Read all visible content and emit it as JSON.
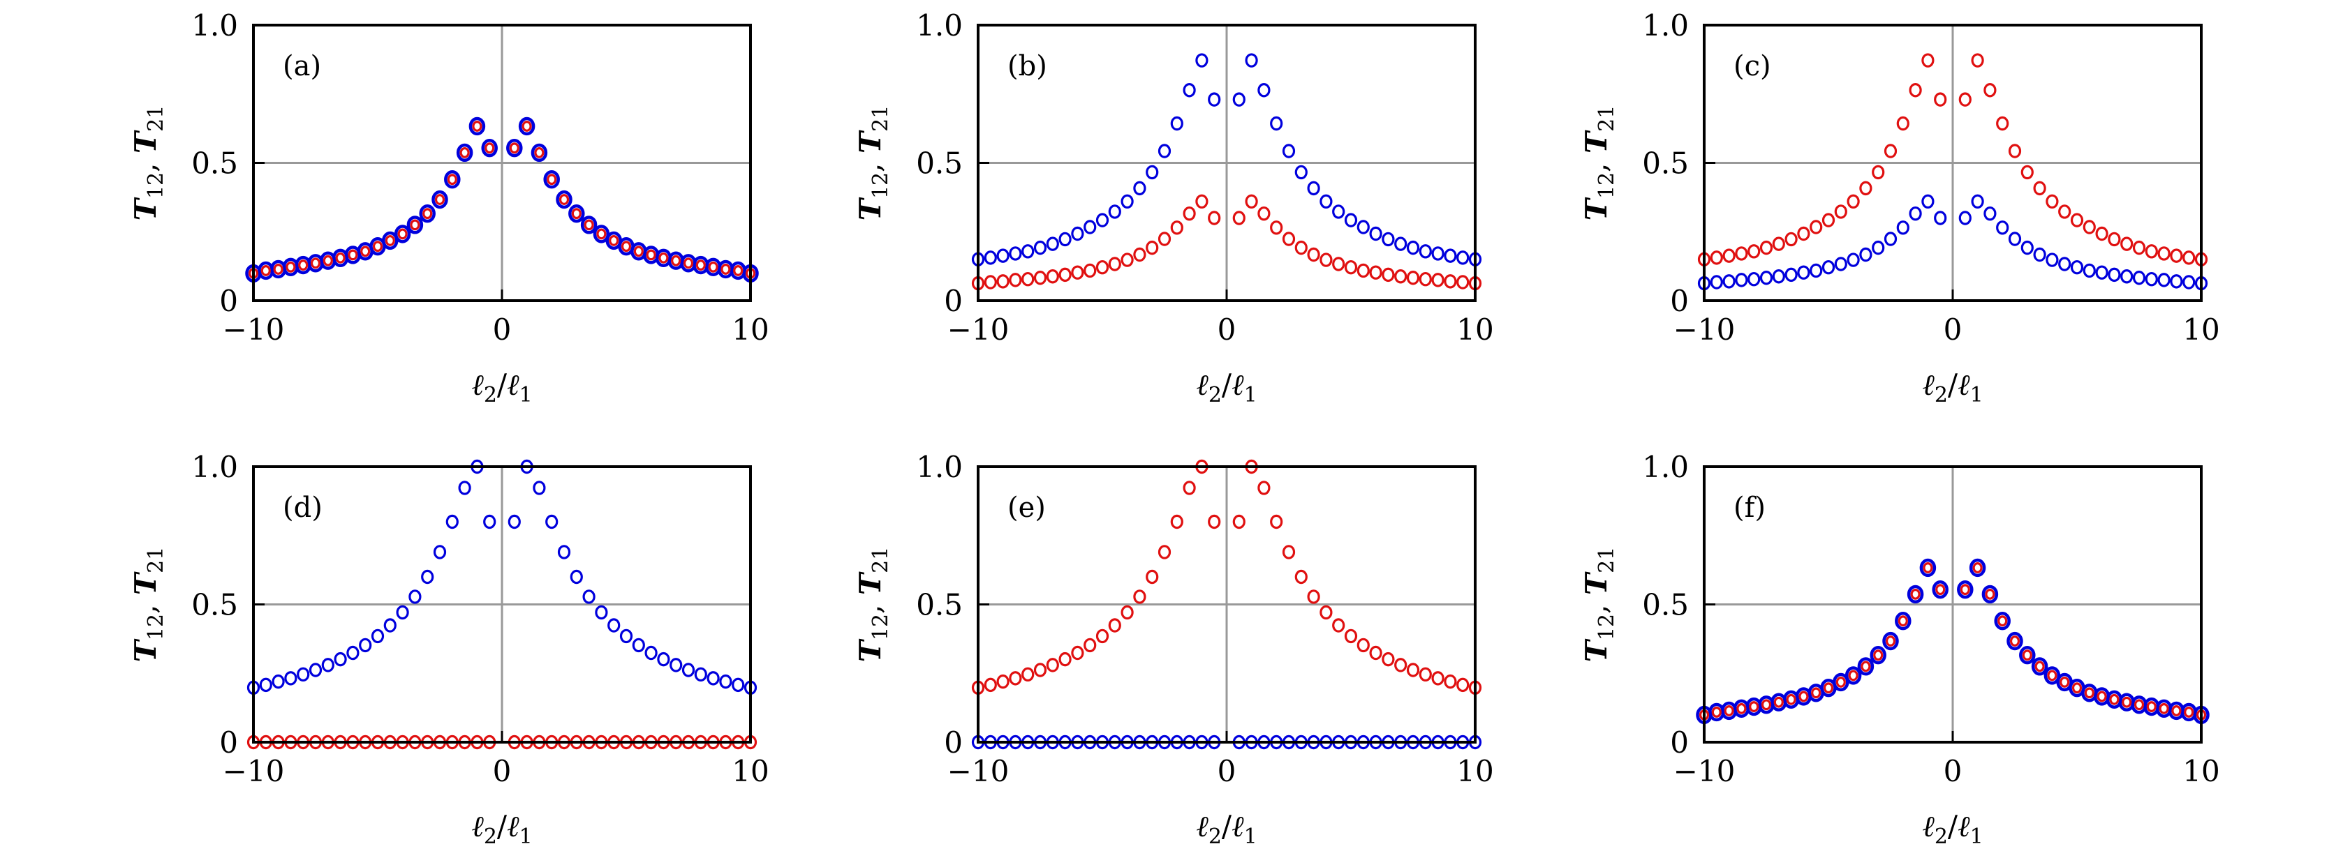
{
  "figure": {
    "colors": {
      "blue": "#0000dd",
      "red": "#e01010",
      "grid": "#999999",
      "axis": "#000000"
    }
  },
  "chart_data": [
    {
      "type": "scatter",
      "panel_label": "(a)",
      "xlabel": {
        "main1": "ℓ",
        "sub1": "2",
        "slash": "/",
        "main2": "ℓ",
        "sub2": "1"
      },
      "ylabel": {
        "main1": "T",
        "sub1": "12",
        "sep": ",  ",
        "main2": "T",
        "sub2": "21"
      },
      "xlim": [
        -10,
        10
      ],
      "ylim": [
        0,
        1
      ],
      "xticks": [
        {
          "value": -10,
          "label": "−10"
        },
        {
          "value": 0,
          "label": "0"
        },
        {
          "value": 10,
          "label": "10"
        }
      ],
      "yticks": [
        {
          "value": 0,
          "label": "0"
        },
        {
          "value": 0.5,
          "label": "0.5"
        },
        {
          "value": 1,
          "label": "1.0"
        }
      ],
      "grid": {
        "x": [
          0
        ],
        "y": [
          0.5
        ]
      },
      "x": [
        -10,
        -9.5,
        -9,
        -8.5,
        -8,
        -7.5,
        -7,
        -6.5,
        -6,
        -5.5,
        -5,
        -4.5,
        -4,
        -3.5,
        -3,
        -2.5,
        -2,
        -1.5,
        -1,
        -0.5,
        0.5,
        1,
        1.5,
        2,
        2.5,
        3,
        3.5,
        4,
        4.5,
        5,
        5.5,
        6,
        6.5,
        7,
        7.5,
        8,
        8.5,
        9,
        9.5,
        10
      ],
      "series": [
        {
          "name": "blue",
          "color": "#0000dd",
          "style": "large",
          "values": [
            0.099,
            0.109,
            0.114,
            0.122,
            0.129,
            0.136,
            0.145,
            0.155,
            0.166,
            0.179,
            0.197,
            0.218,
            0.242,
            0.275,
            0.316,
            0.367,
            0.44,
            0.537,
            0.633,
            0.554,
            0.554,
            0.633,
            0.537,
            0.44,
            0.367,
            0.316,
            0.275,
            0.242,
            0.218,
            0.197,
            0.179,
            0.166,
            0.155,
            0.145,
            0.136,
            0.129,
            0.122,
            0.114,
            0.109,
            0.099
          ]
        },
        {
          "name": "red",
          "color": "#e01010",
          "style": "small",
          "values": [
            0.099,
            0.109,
            0.114,
            0.122,
            0.129,
            0.136,
            0.145,
            0.155,
            0.166,
            0.179,
            0.197,
            0.218,
            0.242,
            0.275,
            0.316,
            0.367,
            0.44,
            0.537,
            0.633,
            0.554,
            0.554,
            0.633,
            0.537,
            0.44,
            0.367,
            0.316,
            0.275,
            0.242,
            0.218,
            0.197,
            0.179,
            0.166,
            0.155,
            0.145,
            0.136,
            0.129,
            0.122,
            0.114,
            0.109,
            0.099
          ]
        }
      ]
    },
    {
      "type": "scatter",
      "panel_label": "(b)",
      "xlabel": {
        "main1": "ℓ",
        "sub1": "2",
        "slash": "/",
        "main2": "ℓ",
        "sub2": "1"
      },
      "ylabel": {
        "main1": "T",
        "sub1": "12",
        "sep": ",  ",
        "main2": "T",
        "sub2": "21"
      },
      "xlim": [
        -10,
        10
      ],
      "ylim": [
        0,
        1
      ],
      "xticks": [
        {
          "value": -10,
          "label": "−10"
        },
        {
          "value": 0,
          "label": "0"
        },
        {
          "value": 10,
          "label": "10"
        }
      ],
      "yticks": [
        {
          "value": 0,
          "label": "0"
        },
        {
          "value": 0.5,
          "label": "0.5"
        },
        {
          "value": 1,
          "label": "1.0"
        }
      ],
      "grid": {
        "x": [
          0
        ],
        "y": [
          0.5
        ]
      },
      "x": [
        -10,
        -9.5,
        -9,
        -8.5,
        -8,
        -7.5,
        -7,
        -6.5,
        -6,
        -5.5,
        -5,
        -4.5,
        -4,
        -3.5,
        -3,
        -2.5,
        -2,
        -1.5,
        -1,
        -0.5,
        0.5,
        1,
        1.5,
        2,
        2.5,
        3,
        3.5,
        4,
        4.5,
        5,
        5.5,
        6,
        6.5,
        7,
        7.5,
        8,
        8.5,
        9,
        9.5,
        10
      ],
      "series": [
        {
          "name": "blue",
          "color": "#0000dd",
          "style": "normal",
          "values": [
            0.15,
            0.156,
            0.163,
            0.171,
            0.179,
            0.192,
            0.206,
            0.223,
            0.243,
            0.267,
            0.292,
            0.323,
            0.36,
            0.408,
            0.466,
            0.543,
            0.643,
            0.764,
            0.872,
            0.73,
            0.73,
            0.872,
            0.764,
            0.643,
            0.543,
            0.466,
            0.408,
            0.36,
            0.323,
            0.292,
            0.267,
            0.243,
            0.223,
            0.206,
            0.192,
            0.179,
            0.171,
            0.163,
            0.156,
            0.15
          ]
        },
        {
          "name": "red",
          "color": "#e01010",
          "style": "normal",
          "values": [
            0.063,
            0.067,
            0.07,
            0.075,
            0.078,
            0.083,
            0.088,
            0.094,
            0.102,
            0.109,
            0.121,
            0.133,
            0.148,
            0.167,
            0.192,
            0.224,
            0.265,
            0.316,
            0.36,
            0.3,
            0.3,
            0.36,
            0.316,
            0.265,
            0.224,
            0.192,
            0.167,
            0.148,
            0.133,
            0.121,
            0.109,
            0.102,
            0.094,
            0.088,
            0.083,
            0.078,
            0.075,
            0.07,
            0.067,
            0.063
          ]
        }
      ]
    },
    {
      "type": "scatter",
      "panel_label": "(c)",
      "xlabel": {
        "main1": "ℓ",
        "sub1": "2",
        "slash": "/",
        "main2": "ℓ",
        "sub2": "1"
      },
      "ylabel": {
        "main1": "T",
        "sub1": "12",
        "sep": ",  ",
        "main2": "T",
        "sub2": "21"
      },
      "xlim": [
        -10,
        10
      ],
      "ylim": [
        0,
        1
      ],
      "xticks": [
        {
          "value": -10,
          "label": "−10"
        },
        {
          "value": 0,
          "label": "0"
        },
        {
          "value": 10,
          "label": "10"
        }
      ],
      "yticks": [
        {
          "value": 0,
          "label": "0"
        },
        {
          "value": 0.5,
          "label": "0.5"
        },
        {
          "value": 1,
          "label": "1.0"
        }
      ],
      "grid": {
        "x": [
          0
        ],
        "y": [
          0.5
        ]
      },
      "x": [
        -10,
        -9.5,
        -9,
        -8.5,
        -8,
        -7.5,
        -7,
        -6.5,
        -6,
        -5.5,
        -5,
        -4.5,
        -4,
        -3.5,
        -3,
        -2.5,
        -2,
        -1.5,
        -1,
        -0.5,
        0.5,
        1,
        1.5,
        2,
        2.5,
        3,
        3.5,
        4,
        4.5,
        5,
        5.5,
        6,
        6.5,
        7,
        7.5,
        8,
        8.5,
        9,
        9.5,
        10
      ],
      "series": [
        {
          "name": "blue",
          "color": "#0000dd",
          "style": "normal",
          "values": [
            0.063,
            0.067,
            0.07,
            0.075,
            0.078,
            0.083,
            0.088,
            0.094,
            0.102,
            0.109,
            0.121,
            0.133,
            0.148,
            0.167,
            0.192,
            0.224,
            0.265,
            0.316,
            0.36,
            0.3,
            0.3,
            0.36,
            0.316,
            0.265,
            0.224,
            0.192,
            0.167,
            0.148,
            0.133,
            0.121,
            0.109,
            0.102,
            0.094,
            0.088,
            0.083,
            0.078,
            0.075,
            0.07,
            0.067,
            0.063
          ]
        },
        {
          "name": "red",
          "color": "#e01010",
          "style": "normal",
          "values": [
            0.15,
            0.156,
            0.163,
            0.171,
            0.179,
            0.192,
            0.206,
            0.223,
            0.243,
            0.267,
            0.292,
            0.323,
            0.36,
            0.408,
            0.466,
            0.543,
            0.643,
            0.764,
            0.872,
            0.73,
            0.73,
            0.872,
            0.764,
            0.643,
            0.543,
            0.466,
            0.408,
            0.36,
            0.323,
            0.292,
            0.267,
            0.243,
            0.223,
            0.206,
            0.192,
            0.179,
            0.171,
            0.163,
            0.156,
            0.15
          ]
        }
      ]
    },
    {
      "type": "scatter",
      "panel_label": "(d)",
      "xlabel": {
        "main1": "ℓ",
        "sub1": "2",
        "slash": "/",
        "main2": "ℓ",
        "sub2": "1"
      },
      "ylabel": {
        "main1": "T",
        "sub1": "12",
        "sep": ",  ",
        "main2": "T",
        "sub2": "21"
      },
      "xlim": [
        -10,
        10
      ],
      "ylim": [
        0,
        1
      ],
      "xticks": [
        {
          "value": -10,
          "label": "−10"
        },
        {
          "value": 0,
          "label": "0"
        },
        {
          "value": 10,
          "label": "10"
        }
      ],
      "yticks": [
        {
          "value": 0,
          "label": "0"
        },
        {
          "value": 0.5,
          "label": "0.5"
        },
        {
          "value": 1,
          "label": "1.0"
        }
      ],
      "grid": {
        "x": [
          0
        ],
        "y": [
          0.5
        ]
      },
      "x": [
        -10,
        -9.5,
        -9,
        -8.5,
        -8,
        -7.5,
        -7,
        -6.5,
        -6,
        -5.5,
        -5,
        -4.5,
        -4,
        -3.5,
        -3,
        -2.5,
        -2,
        -1.5,
        -1,
        -0.5,
        0.5,
        1,
        1.5,
        2,
        2.5,
        3,
        3.5,
        4,
        4.5,
        5,
        5.5,
        6,
        6.5,
        7,
        7.5,
        8,
        8.5,
        9,
        9.5,
        10
      ],
      "series": [
        {
          "name": "blue",
          "color": "#0000dd",
          "style": "normal",
          "values": [
            0.198,
            0.208,
            0.22,
            0.232,
            0.246,
            0.262,
            0.28,
            0.301,
            0.324,
            0.352,
            0.385,
            0.424,
            0.471,
            0.528,
            0.6,
            0.69,
            0.8,
            0.923,
            1.0,
            0.8,
            0.8,
            1.0,
            0.923,
            0.8,
            0.69,
            0.6,
            0.528,
            0.471,
            0.424,
            0.385,
            0.352,
            0.324,
            0.301,
            0.28,
            0.262,
            0.246,
            0.232,
            0.22,
            0.208,
            0.198
          ]
        },
        {
          "name": "red",
          "color": "#e01010",
          "style": "normal",
          "values": [
            0,
            0,
            0,
            0,
            0,
            0,
            0,
            0,
            0,
            0,
            0,
            0,
            0,
            0,
            0,
            0,
            0,
            0,
            0,
            0,
            0,
            0,
            0,
            0,
            0,
            0,
            0,
            0,
            0,
            0,
            0,
            0,
            0,
            0,
            0,
            0,
            0,
            0,
            0,
            0
          ]
        }
      ]
    },
    {
      "type": "scatter",
      "panel_label": "(e)",
      "xlabel": {
        "main1": "ℓ",
        "sub1": "2",
        "slash": "/",
        "main2": "ℓ",
        "sub2": "1"
      },
      "ylabel": {
        "main1": "T",
        "sub1": "12",
        "sep": ",  ",
        "main2": "T",
        "sub2": "21"
      },
      "xlim": [
        -10,
        10
      ],
      "ylim": [
        0,
        1
      ],
      "xticks": [
        {
          "value": -10,
          "label": "−10"
        },
        {
          "value": 0,
          "label": "0"
        },
        {
          "value": 10,
          "label": "10"
        }
      ],
      "yticks": [
        {
          "value": 0,
          "label": "0"
        },
        {
          "value": 0.5,
          "label": "0.5"
        },
        {
          "value": 1,
          "label": "1.0"
        }
      ],
      "grid": {
        "x": [
          0
        ],
        "y": [
          0.5
        ]
      },
      "x": [
        -10,
        -9.5,
        -9,
        -8.5,
        -8,
        -7.5,
        -7,
        -6.5,
        -6,
        -5.5,
        -5,
        -4.5,
        -4,
        -3.5,
        -3,
        -2.5,
        -2,
        -1.5,
        -1,
        -0.5,
        0.5,
        1,
        1.5,
        2,
        2.5,
        3,
        3.5,
        4,
        4.5,
        5,
        5.5,
        6,
        6.5,
        7,
        7.5,
        8,
        8.5,
        9,
        9.5,
        10
      ],
      "series": [
        {
          "name": "blue",
          "color": "#0000dd",
          "style": "normal",
          "values": [
            0,
            0,
            0,
            0,
            0,
            0,
            0,
            0,
            0,
            0,
            0,
            0,
            0,
            0,
            0,
            0,
            0,
            0,
            0,
            0,
            0,
            0,
            0,
            0,
            0,
            0,
            0,
            0,
            0,
            0,
            0,
            0,
            0,
            0,
            0,
            0,
            0,
            0,
            0,
            0
          ]
        },
        {
          "name": "red",
          "color": "#e01010",
          "style": "normal",
          "values": [
            0.198,
            0.208,
            0.22,
            0.232,
            0.246,
            0.262,
            0.28,
            0.301,
            0.324,
            0.352,
            0.385,
            0.424,
            0.471,
            0.528,
            0.6,
            0.69,
            0.8,
            0.923,
            1.0,
            0.8,
            0.8,
            1.0,
            0.923,
            0.8,
            0.69,
            0.6,
            0.528,
            0.471,
            0.424,
            0.385,
            0.352,
            0.324,
            0.301,
            0.28,
            0.262,
            0.246,
            0.232,
            0.22,
            0.208,
            0.198
          ]
        }
      ]
    },
    {
      "type": "scatter",
      "panel_label": "(f)",
      "xlabel": {
        "main1": "ℓ",
        "sub1": "2",
        "slash": "/",
        "main2": "ℓ",
        "sub2": "1"
      },
      "ylabel": {
        "main1": "T",
        "sub1": "12",
        "sep": ",  ",
        "main2": "T",
        "sub2": "21"
      },
      "xlim": [
        -10,
        10
      ],
      "ylim": [
        0,
        1
      ],
      "xticks": [
        {
          "value": -10,
          "label": "−10"
        },
        {
          "value": 0,
          "label": "0"
        },
        {
          "value": 10,
          "label": "10"
        }
      ],
      "yticks": [
        {
          "value": 0,
          "label": "0"
        },
        {
          "value": 0.5,
          "label": "0.5"
        },
        {
          "value": 1,
          "label": "1.0"
        }
      ],
      "grid": {
        "x": [
          0
        ],
        "y": [
          0.5
        ]
      },
      "x": [
        -10,
        -9.5,
        -9,
        -8.5,
        -8,
        -7.5,
        -7,
        -6.5,
        -6,
        -5.5,
        -5,
        -4.5,
        -4,
        -3.5,
        -3,
        -2.5,
        -2,
        -1.5,
        -1,
        -0.5,
        0.5,
        1,
        1.5,
        2,
        2.5,
        3,
        3.5,
        4,
        4.5,
        5,
        5.5,
        6,
        6.5,
        7,
        7.5,
        8,
        8.5,
        9,
        9.5,
        10
      ],
      "series": [
        {
          "name": "blue",
          "color": "#0000dd",
          "style": "large",
          "values": [
            0.099,
            0.109,
            0.114,
            0.122,
            0.129,
            0.136,
            0.145,
            0.155,
            0.166,
            0.179,
            0.197,
            0.218,
            0.242,
            0.275,
            0.316,
            0.367,
            0.44,
            0.537,
            0.633,
            0.554,
            0.554,
            0.633,
            0.537,
            0.44,
            0.367,
            0.316,
            0.275,
            0.242,
            0.218,
            0.197,
            0.179,
            0.166,
            0.155,
            0.145,
            0.136,
            0.129,
            0.122,
            0.114,
            0.109,
            0.099
          ]
        },
        {
          "name": "red",
          "color": "#e01010",
          "style": "small",
          "values": [
            0.099,
            0.109,
            0.114,
            0.122,
            0.129,
            0.136,
            0.145,
            0.155,
            0.166,
            0.179,
            0.197,
            0.218,
            0.242,
            0.275,
            0.316,
            0.367,
            0.44,
            0.537,
            0.633,
            0.554,
            0.554,
            0.633,
            0.537,
            0.44,
            0.367,
            0.316,
            0.275,
            0.242,
            0.218,
            0.197,
            0.179,
            0.166,
            0.155,
            0.145,
            0.136,
            0.129,
            0.122,
            0.114,
            0.109,
            0.099
          ]
        }
      ]
    }
  ]
}
